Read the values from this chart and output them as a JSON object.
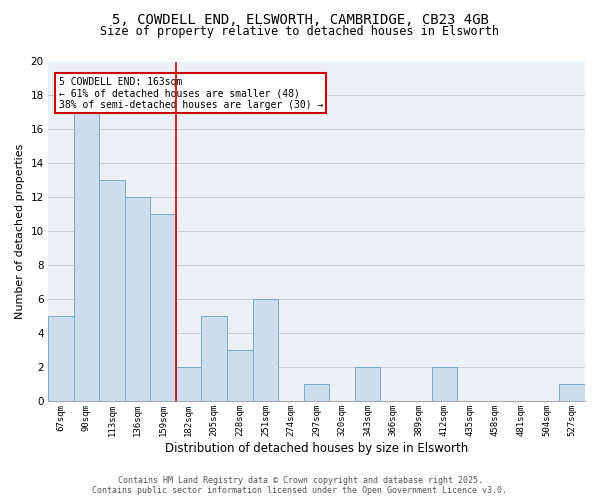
{
  "title_line1": "5, COWDELL END, ELSWORTH, CAMBRIDGE, CB23 4GB",
  "title_line2": "Size of property relative to detached houses in Elsworth",
  "xlabel": "Distribution of detached houses by size in Elsworth",
  "ylabel": "Number of detached properties",
  "bar_labels": [
    "67sqm",
    "90sqm",
    "113sqm",
    "136sqm",
    "159sqm",
    "182sqm",
    "205sqm",
    "228sqm",
    "251sqm",
    "274sqm",
    "297sqm",
    "320sqm",
    "343sqm",
    "366sqm",
    "389sqm",
    "412sqm",
    "435sqm",
    "458sqm",
    "481sqm",
    "504sqm",
    "527sqm"
  ],
  "bar_values": [
    5,
    17,
    13,
    12,
    11,
    2,
    5,
    3,
    6,
    0,
    1,
    0,
    2,
    0,
    0,
    2,
    0,
    0,
    0,
    0,
    1
  ],
  "bar_color": "#ccdded",
  "bar_edge_color": "#7aaac8",
  "red_line_x": 4.5,
  "annotation_text": "5 COWDELL END: 163sqm\n← 61% of detached houses are smaller (48)\n38% of semi-detached houses are larger (30) →",
  "annotation_box_color": "#ffffff",
  "annotation_box_edge": "#cc0000",
  "ylim": [
    0,
    20
  ],
  "yticks": [
    0,
    2,
    4,
    6,
    8,
    10,
    12,
    14,
    16,
    18,
    20
  ],
  "grid_color": "#cccccc",
  "background_color": "#eaf0f6",
  "footer_line1": "Contains HM Land Registry data © Crown copyright and database right 2025.",
  "footer_line2": "Contains public sector information licensed under the Open Government Licence v3.0."
}
